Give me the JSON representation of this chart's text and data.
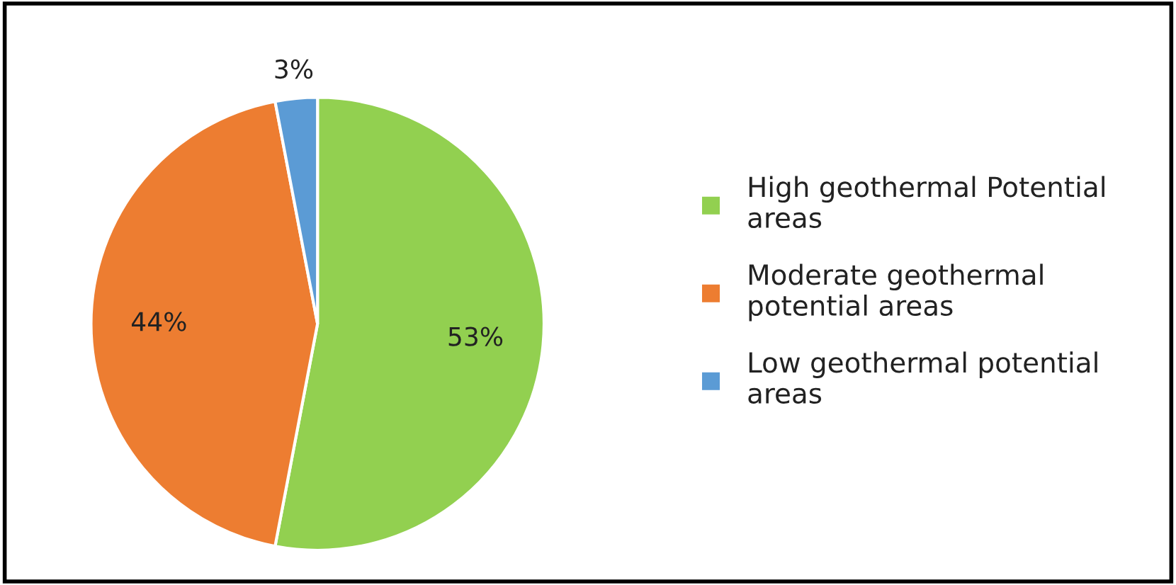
{
  "chart_data": {
    "type": "pie",
    "categories": [
      "High geothermal Potential\nareas",
      "Moderate geothermal\npotential areas",
      "Low geothermal potential\nareas"
    ],
    "values": [
      53,
      44,
      3
    ],
    "colors": [
      "#92d050",
      "#ed7d31",
      "#5b9bd5"
    ],
    "value_labels": [
      "53%",
      "44%",
      "3%"
    ],
    "legend": "right"
  }
}
